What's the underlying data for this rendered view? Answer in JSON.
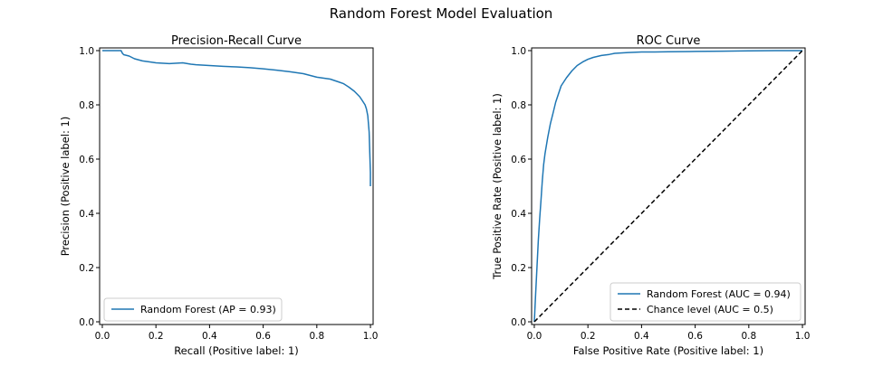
{
  "suptitle": "Random Forest Model Evaluation",
  "colors": {
    "series": "#1f77b4",
    "chance": "#000000",
    "axes": "#000000"
  },
  "chart_data": [
    {
      "type": "line",
      "title": "Precision-Recall Curve",
      "xlabel": "Recall (Positive label: 1)",
      "ylabel": "Precision (Positive label: 1)",
      "xlim": [
        -0.01,
        1.01
      ],
      "ylim": [
        -0.01,
        1.01
      ],
      "xticks": [
        "0.0",
        "0.2",
        "0.4",
        "0.6",
        "0.8",
        "1.0"
      ],
      "yticks": [
        "0.0",
        "0.2",
        "0.4",
        "0.6",
        "0.8",
        "1.0"
      ],
      "grid": false,
      "legend_position": "lower-left",
      "series": [
        {
          "name": "Random Forest (AP = 0.93)",
          "style": "solid",
          "x": [
            0.0,
            0.02,
            0.05,
            0.07,
            0.075,
            0.08,
            0.1,
            0.12,
            0.15,
            0.18,
            0.2,
            0.25,
            0.3,
            0.33,
            0.35,
            0.4,
            0.45,
            0.5,
            0.55,
            0.6,
            0.65,
            0.7,
            0.75,
            0.8,
            0.85,
            0.88,
            0.9,
            0.92,
            0.94,
            0.96,
            0.97,
            0.98,
            0.985,
            0.99,
            0.995,
            1.0,
            1.0
          ],
          "y": [
            1.0,
            1.0,
            1.0,
            1.0,
            0.99,
            0.985,
            0.98,
            0.97,
            0.962,
            0.958,
            0.955,
            0.952,
            0.955,
            0.95,
            0.948,
            0.945,
            0.942,
            0.94,
            0.937,
            0.933,
            0.928,
            0.922,
            0.915,
            0.902,
            0.895,
            0.885,
            0.878,
            0.865,
            0.85,
            0.83,
            0.815,
            0.8,
            0.785,
            0.76,
            0.7,
            0.55,
            0.5
          ]
        }
      ]
    },
    {
      "type": "line",
      "title": "ROC Curve",
      "xlabel": "False Positive Rate (Positive label: 1)",
      "ylabel": "True Positive Rate (Positive label: 1)",
      "xlim": [
        -0.01,
        1.01
      ],
      "ylim": [
        -0.01,
        1.01
      ],
      "xticks": [
        "0.0",
        "0.2",
        "0.4",
        "0.6",
        "0.8",
        "1.0"
      ],
      "yticks": [
        "0.0",
        "0.2",
        "0.4",
        "0.6",
        "0.8",
        "1.0"
      ],
      "grid": false,
      "legend_position": "lower-right",
      "series": [
        {
          "name": "Random Forest (AUC = 0.94)",
          "style": "solid",
          "x": [
            0.0,
            0.005,
            0.01,
            0.015,
            0.02,
            0.025,
            0.03,
            0.035,
            0.04,
            0.05,
            0.06,
            0.07,
            0.08,
            0.09,
            0.1,
            0.12,
            0.14,
            0.16,
            0.18,
            0.2,
            0.22,
            0.25,
            0.28,
            0.3,
            0.35,
            0.4,
            0.45,
            0.5,
            0.6,
            0.7,
            0.8,
            0.9,
            1.0
          ],
          "y": [
            0.0,
            0.1,
            0.2,
            0.3,
            0.38,
            0.45,
            0.52,
            0.58,
            0.62,
            0.68,
            0.73,
            0.77,
            0.81,
            0.84,
            0.87,
            0.9,
            0.925,
            0.945,
            0.958,
            0.968,
            0.975,
            0.982,
            0.986,
            0.99,
            0.993,
            0.995,
            0.995,
            0.996,
            0.997,
            0.998,
            0.999,
            1.0,
            1.0
          ]
        },
        {
          "name": "Chance level (AUC = 0.5)",
          "style": "dashed",
          "x": [
            0.0,
            1.0
          ],
          "y": [
            0.0,
            1.0
          ]
        }
      ]
    }
  ]
}
